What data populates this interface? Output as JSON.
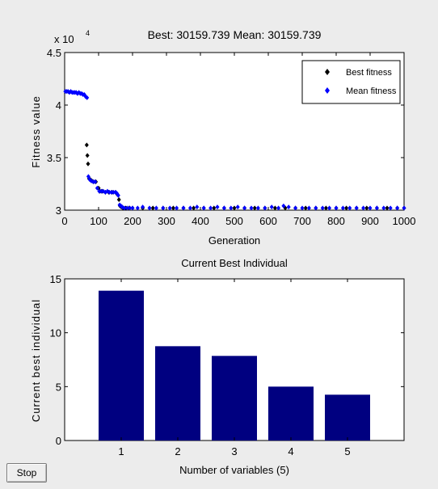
{
  "controls": {
    "stop_label": "Stop"
  },
  "chart_data": [
    {
      "type": "scatter",
      "title": "Best: 30159.739 Mean: 30159.739",
      "xlabel": "Generation",
      "ylabel": "Fitness value",
      "y_exponent_label": "x 10",
      "y_exponent_power": "4",
      "xlim": [
        0,
        1000
      ],
      "ylim": [
        3,
        4.5
      ],
      "x_ticks": [
        0,
        100,
        200,
        300,
        400,
        500,
        600,
        700,
        800,
        900,
        1000
      ],
      "y_ticks": [
        3,
        3.5,
        4,
        4.5
      ],
      "x_tick_labels": [
        "0",
        "100",
        "200",
        "300",
        "400",
        "500",
        "600",
        "700",
        "800",
        "900",
        "1000"
      ],
      "y_tick_labels": [
        "3",
        "3.5",
        "4",
        "4.5"
      ],
      "legend_position": "top-right",
      "series": [
        {
          "name": "Best fitness",
          "color": "#000000",
          "marker": "diamond",
          "points": [
            [
              65,
              3.62
            ],
            [
              67,
              3.52
            ],
            [
              69,
              3.44
            ],
            [
              72,
              3.3
            ],
            [
              76,
              3.29
            ],
            [
              80,
              3.28
            ],
            [
              85,
              3.27
            ],
            [
              92,
              3.27
            ],
            [
              100,
              3.21
            ],
            [
              104,
              3.18
            ],
            [
              110,
              3.18
            ],
            [
              120,
              3.17
            ],
            [
              130,
              3.17
            ],
            [
              140,
              3.17
            ],
            [
              150,
              3.17
            ],
            [
              155,
              3.15
            ],
            [
              160,
              3.1
            ],
            [
              163,
              3.04
            ],
            [
              167,
              3.03
            ],
            [
              172,
              3.02
            ],
            [
              180,
              3.02
            ],
            [
              190,
              3.02
            ],
            [
              200,
              3.02
            ],
            [
              230,
              3.02
            ],
            [
              260,
              3.02
            ],
            [
              290,
              3.02
            ],
            [
              320,
              3.02
            ],
            [
              350,
              3.02
            ],
            [
              380,
              3.02
            ],
            [
              410,
              3.02
            ],
            [
              440,
              3.02
            ],
            [
              470,
              3.02
            ],
            [
              500,
              3.02
            ],
            [
              530,
              3.02
            ],
            [
              560,
              3.02
            ],
            [
              590,
              3.02
            ],
            [
              620,
              3.02
            ],
            [
              650,
              3.02
            ],
            [
              680,
              3.02
            ],
            [
              710,
              3.02
            ],
            [
              740,
              3.02
            ],
            [
              770,
              3.02
            ],
            [
              800,
              3.02
            ],
            [
              830,
              3.02
            ],
            [
              860,
              3.02
            ],
            [
              890,
              3.02
            ],
            [
              920,
              3.02
            ],
            [
              950,
              3.02
            ],
            [
              980,
              3.02
            ],
            [
              1000,
              3.02
            ]
          ]
        },
        {
          "name": "Mean fitness",
          "color": "#0000ff",
          "marker": "diamond",
          "points": [
            [
              2,
              4.13
            ],
            [
              6,
              4.13
            ],
            [
              10,
              4.13
            ],
            [
              14,
              4.12
            ],
            [
              18,
              4.13
            ],
            [
              22,
              4.12
            ],
            [
              26,
              4.12
            ],
            [
              30,
              4.12
            ],
            [
              34,
              4.12
            ],
            [
              38,
              4.11
            ],
            [
              42,
              4.12
            ],
            [
              46,
              4.11
            ],
            [
              50,
              4.11
            ],
            [
              54,
              4.1
            ],
            [
              58,
              4.1
            ],
            [
              62,
              4.08
            ],
            [
              66,
              4.07
            ],
            [
              70,
              3.32
            ],
            [
              74,
              3.29
            ],
            [
              78,
              3.28
            ],
            [
              84,
              3.27
            ],
            [
              90,
              3.27
            ],
            [
              96,
              3.21
            ],
            [
              102,
              3.18
            ],
            [
              108,
              3.18
            ],
            [
              114,
              3.18
            ],
            [
              120,
              3.17
            ],
            [
              126,
              3.18
            ],
            [
              132,
              3.17
            ],
            [
              138,
              3.17
            ],
            [
              144,
              3.17
            ],
            [
              150,
              3.17
            ],
            [
              154,
              3.16
            ],
            [
              158,
              3.14
            ],
            [
              162,
              3.05
            ],
            [
              166,
              3.04
            ],
            [
              170,
              3.03
            ],
            [
              176,
              3.02
            ],
            [
              184,
              3.02
            ],
            [
              192,
              3.02
            ],
            [
              200,
              3.02
            ],
            [
              215,
              3.02
            ],
            [
              230,
              3.03
            ],
            [
              250,
              3.02
            ],
            [
              270,
              3.02
            ],
            [
              290,
              3.02
            ],
            [
              310,
              3.02
            ],
            [
              330,
              3.02
            ],
            [
              350,
              3.02
            ],
            [
              370,
              3.02
            ],
            [
              390,
              3.03
            ],
            [
              410,
              3.02
            ],
            [
              430,
              3.02
            ],
            [
              450,
              3.03
            ],
            [
              470,
              3.02
            ],
            [
              490,
              3.02
            ],
            [
              510,
              3.03
            ],
            [
              530,
              3.02
            ],
            [
              550,
              3.02
            ],
            [
              570,
              3.02
            ],
            [
              590,
              3.02
            ],
            [
              610,
              3.03
            ],
            [
              630,
              3.02
            ],
            [
              645,
              3.04
            ],
            [
              660,
              3.03
            ],
            [
              680,
              3.02
            ],
            [
              700,
              3.02
            ],
            [
              720,
              3.02
            ],
            [
              740,
              3.02
            ],
            [
              760,
              3.02
            ],
            [
              780,
              3.02
            ],
            [
              800,
              3.02
            ],
            [
              820,
              3.02
            ],
            [
              840,
              3.02
            ],
            [
              860,
              3.02
            ],
            [
              880,
              3.02
            ],
            [
              900,
              3.02
            ],
            [
              920,
              3.02
            ],
            [
              940,
              3.02
            ],
            [
              960,
              3.02
            ],
            [
              980,
              3.02
            ],
            [
              1000,
              3.02
            ]
          ]
        }
      ]
    },
    {
      "type": "bar",
      "title": "Current Best Individual",
      "xlabel": "Number of variables (5)",
      "ylabel": "Current best individual",
      "categories": [
        "1",
        "2",
        "3",
        "4",
        "5"
      ],
      "values": [
        13.9,
        8.75,
        7.85,
        5.0,
        4.25
      ],
      "bar_color": "#000080",
      "xlim": [
        0,
        6
      ],
      "ylim": [
        0,
        15
      ],
      "y_ticks": [
        0,
        5,
        10,
        15
      ],
      "y_tick_labels": [
        "0",
        "5",
        "10",
        "15"
      ]
    }
  ]
}
